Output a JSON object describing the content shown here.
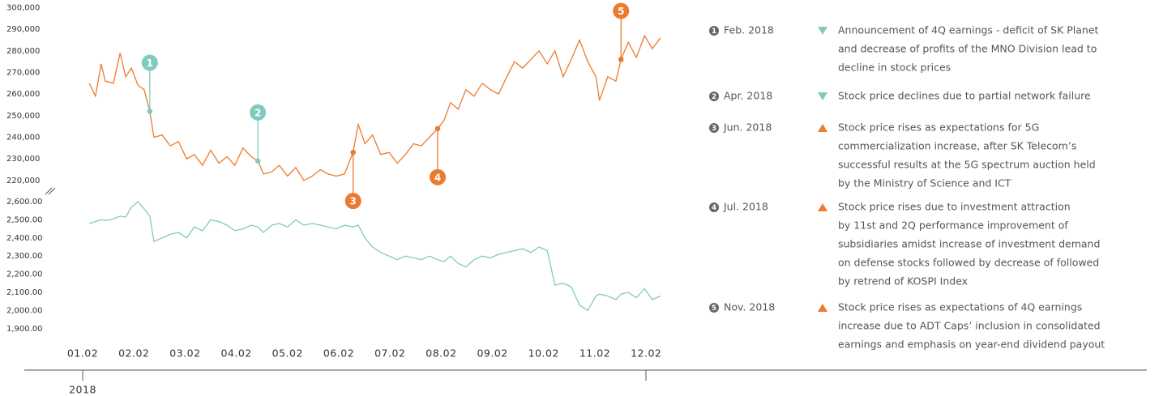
{
  "chart_data": [
    {
      "type": "line",
      "name": "stock-price",
      "xlim": [
        0.9,
        12.4
      ],
      "ylim": [
        215000,
        300000
      ],
      "yticks": [
        {
          "value": 220000,
          "label": "220,000"
        },
        {
          "value": 230000,
          "label": "230,000"
        },
        {
          "value": 240000,
          "label": "240,000"
        },
        {
          "value": 250000,
          "label": "250,000"
        },
        {
          "value": 260000,
          "label": "260,000"
        },
        {
          "value": 270000,
          "label": "270,000"
        },
        {
          "value": 280000,
          "label": "280,000"
        },
        {
          "value": 290000,
          "label": "290,000"
        },
        {
          "value": 300000,
          "label": "300,000"
        }
      ],
      "series": [
        {
          "color": "#ec7a2f",
          "x": [
            1.13,
            1.25,
            1.36,
            1.44,
            1.6,
            1.73,
            1.84,
            1.95,
            2.08,
            2.2,
            2.31,
            2.39,
            2.55,
            2.71,
            2.87,
            3.03,
            3.18,
            3.34,
            3.5,
            3.66,
            3.82,
            3.97,
            4.13,
            4.29,
            4.42,
            4.53,
            4.69,
            4.84,
            5.0,
            5.16,
            5.32,
            5.48,
            5.64,
            5.79,
            5.95,
            6.11,
            6.28,
            6.38,
            6.51,
            6.66,
            6.82,
            6.98,
            7.14,
            7.3,
            7.46,
            7.61,
            7.77,
            7.93,
            8.06,
            8.18,
            8.33,
            8.48,
            8.64,
            8.8,
            8.96,
            9.12,
            9.28,
            9.43,
            9.59,
            9.75,
            9.91,
            10.07,
            10.22,
            10.38,
            10.54,
            10.7,
            10.86,
            11.02,
            11.09,
            11.25,
            11.41,
            11.51,
            11.65,
            11.81,
            11.97,
            12.12,
            12.28
          ],
          "values": [
            265000,
            259000,
            274000,
            266000,
            265000,
            279000,
            268000,
            272000,
            264000,
            262000,
            252000,
            240000,
            241000,
            236000,
            238000,
            230000,
            232000,
            227000,
            234000,
            228000,
            231000,
            227000,
            235000,
            231000,
            229000,
            223000,
            224000,
            227000,
            222000,
            226000,
            220000,
            222000,
            225000,
            223000,
            222000,
            223000,
            233000,
            246000,
            237000,
            241000,
            232000,
            233000,
            228000,
            232000,
            237000,
            236000,
            240000,
            244000,
            248000,
            256000,
            253000,
            262000,
            259000,
            265000,
            262000,
            260000,
            268000,
            275000,
            272000,
            276000,
            280000,
            274000,
            280000,
            268000,
            276000,
            285000,
            275000,
            268000,
            257000,
            268000,
            266000,
            276000,
            284000,
            277000,
            287000,
            281000,
            286000
          ]
        }
      ],
      "annotations": [
        {
          "label": "1",
          "x": 2.31,
          "y": 252000,
          "color": "#7fcbbf",
          "position": "above"
        },
        {
          "label": "2",
          "x": 4.42,
          "y": 229000,
          "color": "#7fcbbf",
          "position": "above"
        },
        {
          "label": "3",
          "x": 6.28,
          "y": 233000,
          "color": "#ec7a2f",
          "position": "below"
        },
        {
          "label": "4",
          "x": 7.93,
          "y": 244000,
          "color": "#ec7a2f",
          "position": "below"
        },
        {
          "label": "5",
          "x": 11.51,
          "y": 276000,
          "color": "#ec7a2f",
          "position": "above"
        }
      ]
    },
    {
      "type": "line",
      "name": "kospi",
      "xlim": [
        0.9,
        12.4
      ],
      "ylim": [
        1880,
        2620
      ],
      "xticks": [
        {
          "value": 1,
          "label": "01.02"
        },
        {
          "value": 2,
          "label": "02.02"
        },
        {
          "value": 3,
          "label": "03.02"
        },
        {
          "value": 4,
          "label": "04.02"
        },
        {
          "value": 5,
          "label": "05.02"
        },
        {
          "value": 6,
          "label": "06.02"
        },
        {
          "value": 7,
          "label": "07.02"
        },
        {
          "value": 8,
          "label": "08.02"
        },
        {
          "value": 9,
          "label": "09.02"
        },
        {
          "value": 10,
          "label": "10.02"
        },
        {
          "value": 11,
          "label": "11.02"
        },
        {
          "value": 12,
          "label": "12.02"
        }
      ],
      "yticks": [
        {
          "value": 1900,
          "label": "1,900.00"
        },
        {
          "value": 2000,
          "label": "2,000.00"
        },
        {
          "value": 2100,
          "label": "2,100.00"
        },
        {
          "value": 2200,
          "label": "2,200.00"
        },
        {
          "value": 2300,
          "label": "2,300.00"
        },
        {
          "value": 2400,
          "label": "2,400.00"
        },
        {
          "value": 2500,
          "label": "2,500.00"
        },
        {
          "value": 2600,
          "label": "2,600.00"
        }
      ],
      "series": [
        {
          "color": "#7fcbbf",
          "x": [
            1.13,
            1.25,
            1.36,
            1.44,
            1.6,
            1.73,
            1.84,
            1.95,
            2.08,
            2.2,
            2.31,
            2.39,
            2.55,
            2.71,
            2.87,
            3.03,
            3.18,
            3.34,
            3.5,
            3.66,
            3.82,
            3.97,
            4.13,
            4.29,
            4.42,
            4.53,
            4.69,
            4.84,
            5.0,
            5.16,
            5.32,
            5.48,
            5.64,
            5.79,
            5.95,
            6.11,
            6.28,
            6.38,
            6.51,
            6.66,
            6.82,
            6.98,
            7.14,
            7.3,
            7.46,
            7.61,
            7.77,
            7.93,
            8.06,
            8.18,
            8.33,
            8.48,
            8.64,
            8.8,
            8.96,
            9.12,
            9.28,
            9.43,
            9.59,
            9.75,
            9.91,
            10.07,
            10.22,
            10.38,
            10.54,
            10.7,
            10.86,
            11.02,
            11.09,
            11.25,
            11.41,
            11.51,
            11.65,
            11.81,
            11.97,
            12.12,
            12.28
          ],
          "values": [
            2480,
            2490,
            2500,
            2495,
            2505,
            2520,
            2515,
            2570,
            2600,
            2560,
            2520,
            2380,
            2400,
            2420,
            2430,
            2400,
            2460,
            2440,
            2500,
            2490,
            2470,
            2440,
            2450,
            2470,
            2460,
            2430,
            2470,
            2480,
            2460,
            2500,
            2470,
            2480,
            2470,
            2460,
            2450,
            2470,
            2460,
            2470,
            2400,
            2350,
            2320,
            2300,
            2280,
            2300,
            2290,
            2280,
            2300,
            2280,
            2270,
            2300,
            2260,
            2240,
            2280,
            2300,
            2290,
            2310,
            2320,
            2330,
            2340,
            2320,
            2350,
            2330,
            2140,
            2150,
            2130,
            2030,
            2000,
            2080,
            2090,
            2080,
            2060,
            2090,
            2100,
            2070,
            2120,
            2060,
            2080
          ]
        }
      ]
    }
  ],
  "timeline": {
    "label": "2018"
  },
  "events": [
    {
      "number": "1",
      "date": "Feb. 2018",
      "direction": "down",
      "lines": [
        "Announcement of 4Q earnings - deficit of SK Planet",
        "and decrease of profits of the MNO Division lead to",
        "decline in stock prices"
      ]
    },
    {
      "number": "2",
      "date": "Apr. 2018",
      "direction": "down",
      "lines": [
        "Stock price declines due to partial network failure"
      ]
    },
    {
      "number": "3",
      "date": "Jun. 2018",
      "direction": "up",
      "lines": [
        "Stock price rises as expectations for 5G",
        "commercialization increase, after SK Telecom’s",
        "successful results at the 5G spectrum auction held",
        "by the Ministry of Science and ICT"
      ]
    },
    {
      "number": "4",
      "date": "Jul. 2018",
      "direction": "up",
      "lines": [
        "Stock price rises due to investment attraction",
        "by 11st and 2Q performance improvement of",
        "subsidiaries amidst increase of investment demand",
        "on defense stocks followed by decrease of followed",
        "by retrend of KOSPI Index"
      ]
    },
    {
      "number": "5",
      "date": "Nov. 2018",
      "direction": "up",
      "lines": [
        "Stock price rises as expectations of 4Q earnings",
        "increase due to ADT Caps’ inclusion in consolidated",
        "earnings and emphasis on year-end dividend payout"
      ]
    }
  ]
}
